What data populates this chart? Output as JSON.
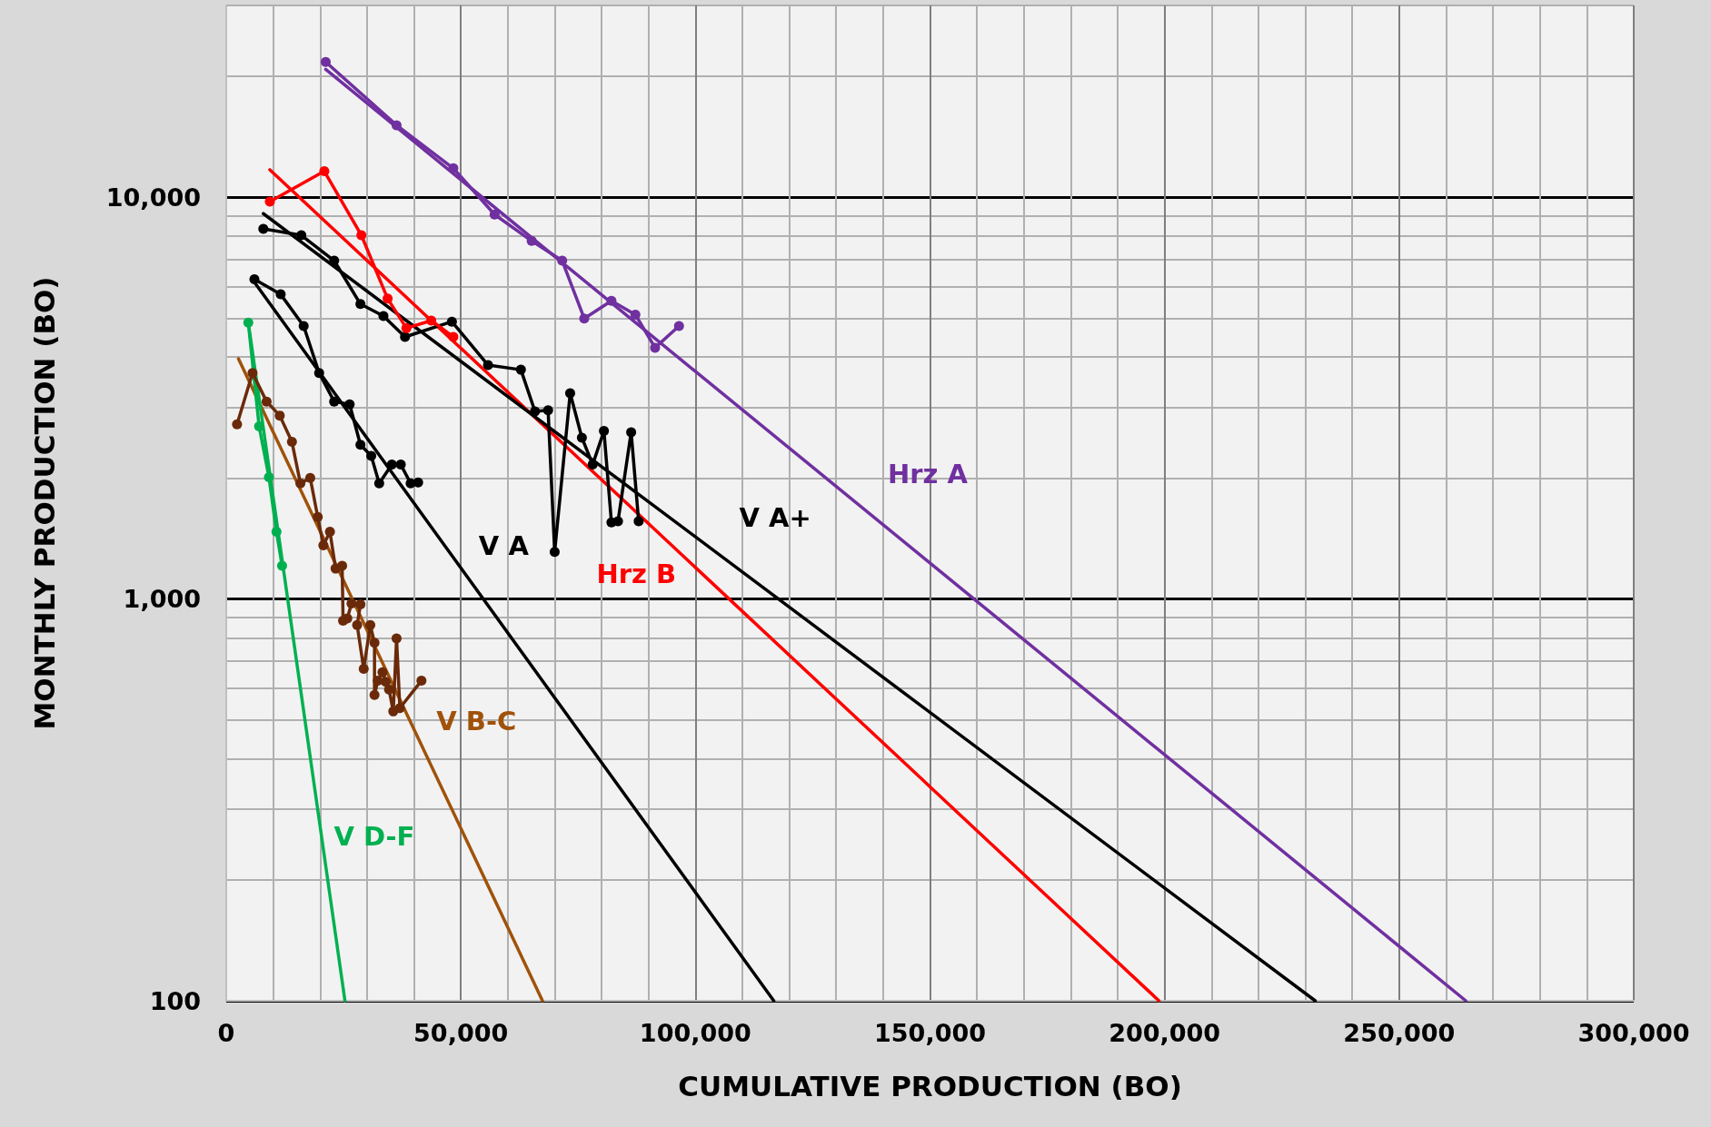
{
  "chart_data": {
    "type": "line",
    "xlabel": "CUMULATIVE PRODUCTION (BO)",
    "ylabel": "MONTHLY PRODUCTION (BO)",
    "log": "y",
    "grid": true,
    "line_style": "solid",
    "xlim": [
      0,
      300000
    ],
    "xticks": [
      {
        "value": 0,
        "label": "0"
      },
      {
        "value": 10000,
        "label": null
      },
      {
        "value": 20000,
        "label": null
      },
      {
        "value": 30000,
        "label": null
      },
      {
        "value": 40000,
        "label": null
      },
      {
        "value": 50000,
        "label": "50,000"
      },
      {
        "value": 60000,
        "label": null
      },
      {
        "value": 70000,
        "label": null
      },
      {
        "value": 80000,
        "label": null
      },
      {
        "value": 90000,
        "label": null
      },
      {
        "value": 100000,
        "label": "100,000"
      },
      {
        "value": 110000,
        "label": null
      },
      {
        "value": 120000,
        "label": null
      },
      {
        "value": 130000,
        "label": null
      },
      {
        "value": 140000,
        "label": null
      },
      {
        "value": 150000,
        "label": "150,000"
      },
      {
        "value": 160000,
        "label": null
      },
      {
        "value": 170000,
        "label": null
      },
      {
        "value": 180000,
        "label": null
      },
      {
        "value": 190000,
        "label": null
      },
      {
        "value": 200000,
        "label": "200,000"
      },
      {
        "value": 210000,
        "label": null
      },
      {
        "value": 220000,
        "label": null
      },
      {
        "value": 230000,
        "label": null
      },
      {
        "value": 240000,
        "label": null
      },
      {
        "value": 250000,
        "label": "250,000"
      },
      {
        "value": 260000,
        "label": null
      },
      {
        "value": 270000,
        "label": null
      },
      {
        "value": 280000,
        "label": null
      },
      {
        "value": 290000,
        "label": null
      },
      {
        "value": 300000,
        "label": "300,000"
      }
    ],
    "ylim": [
      100,
      30000
    ],
    "yticks": [
      {
        "value": 100,
        "label": "100"
      },
      {
        "value": 200,
        "label": null
      },
      {
        "value": 300,
        "label": null
      },
      {
        "value": 400,
        "label": null
      },
      {
        "value": 500,
        "label": null
      },
      {
        "value": 600,
        "label": null
      },
      {
        "value": 700,
        "label": null
      },
      {
        "value": 800,
        "label": null
      },
      {
        "value": 900,
        "label": null
      },
      {
        "value": 1000,
        "label": "1,000"
      },
      {
        "value": 2000,
        "label": null
      },
      {
        "value": 3000,
        "label": null
      },
      {
        "value": 4000,
        "label": null
      },
      {
        "value": 5000,
        "label": null
      },
      {
        "value": 6000,
        "label": null
      },
      {
        "value": 7000,
        "label": null
      },
      {
        "value": 8000,
        "label": null
      },
      {
        "value": 9000,
        "label": null
      },
      {
        "value": 10000,
        "label": "10,000"
      },
      {
        "value": 20000,
        "label": null
      },
      {
        "value": 30000,
        "label": null
      }
    ],
    "series": [
      {
        "color": "#7030a0",
        "marker": "circle",
        "x": [
          21200,
          36300,
          48400,
          57200,
          65100,
          71600,
          76300,
          82100,
          87200,
          91400,
          96500
        ],
        "values": [
          21700,
          15100,
          11800,
          9050,
          7780,
          6950,
          4990,
          5520,
          5100,
          4220,
          4780
        ]
      },
      {
        "name": "Hrz A",
        "color": "#7030a0",
        "marker": "none",
        "x": [
          21200,
          149500,
          264200
        ],
        "values": [
          20800,
          1242,
          100
        ]
      },
      {
        "color": "#ff0000",
        "marker": "circle",
        "x": [
          9300,
          20900,
          28800,
          34400,
          38400,
          43700,
          48400
        ],
        "values": [
          9750,
          11600,
          8040,
          5590,
          4720,
          4930,
          4490
        ]
      },
      {
        "name": "Hrz B",
        "color": "#ff0000",
        "marker": "none",
        "x": [
          9300,
          87400,
          198800
        ],
        "values": [
          11700,
          1644,
          100
        ]
      },
      {
        "color": "#000000",
        "marker": "circle",
        "x": [
          7900,
          16000,
          23000,
          28600,
          33500,
          38100,
          48100,
          55800,
          62800,
          65800,
          68600,
          70000,
          73300,
          75800,
          78100,
          80500,
          82100,
          83500,
          86300,
          87900
        ],
        "values": [
          8340,
          8040,
          6950,
          5420,
          5060,
          4490,
          4900,
          3820,
          3720,
          2930,
          2950,
          1310,
          3250,
          2520,
          2160,
          2620,
          1550,
          1560,
          2600,
          1560
        ]
      },
      {
        "name": "V A+",
        "color": "#000000",
        "marker": "none",
        "x": [
          7900,
          117000,
          232100
        ],
        "values": [
          9100,
          1014,
          100
        ]
      },
      {
        "color": "#000000",
        "marker": "circle",
        "x": [
          6000,
          11600,
          16500,
          19800,
          23000,
          26300,
          28600,
          30900,
          32600,
          35300,
          37200,
          39300,
          40900
        ],
        "values": [
          6250,
          5730,
          4780,
          3650,
          3100,
          3050,
          2420,
          2270,
          1940,
          2160,
          2160,
          1940,
          1950
        ]
      },
      {
        "name": "V A",
        "color": "#000000",
        "marker": "none",
        "x": [
          6000,
          46550,
          116700
        ],
        "values": [
          6140,
          1358,
          100
        ]
      },
      {
        "color": "#6a2a0a",
        "marker": "circle",
        "x": [
          2300,
          5600,
          8600,
          11400,
          14000,
          15800,
          17900,
          19500,
          20700,
          22100,
          23300,
          24700,
          24900,
          25800,
          26700,
          28600,
          27900,
          29300,
          30700,
          31600,
          31600,
          32300,
          33300,
          34000,
          34700,
          35600,
          36300,
          37000,
          41600
        ],
        "values": [
          2720,
          3650,
          3100,
          2860,
          2460,
          1940,
          2000,
          1600,
          1360,
          1470,
          1190,
          1210,
          883,
          894,
          975,
          969,
          861,
          670,
          861,
          778,
          577,
          626,
          657,
          622,
          595,
          525,
          798,
          535,
          626
        ]
      },
      {
        "name": "V B-C",
        "color": "#a0520a",
        "marker": "none",
        "x": [
          2600,
          39180,
          67400
        ],
        "values": [
          3960,
          497,
          100
        ]
      },
      {
        "color": "#00b050",
        "marker": "circle",
        "x": [
          4700,
          7000,
          9100,
          10700,
          11900
        ],
        "values": [
          4870,
          2690,
          2010,
          1470,
          1210
        ]
      },
      {
        "name": "V D-F",
        "color": "#00b050",
        "marker": "none",
        "x": [
          4700,
          20320,
          25300
        ],
        "values": [
          4870,
          256,
          100
        ]
      }
    ]
  }
}
